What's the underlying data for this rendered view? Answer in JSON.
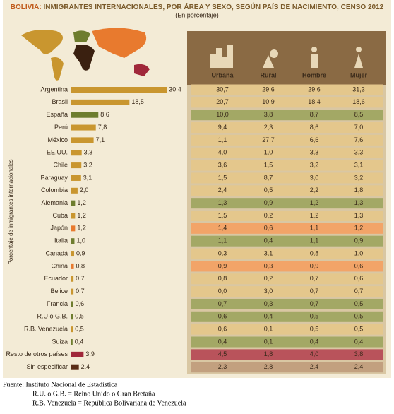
{
  "chart_data": {
    "type": "bar",
    "orientation": "horizontal",
    "title_prefix": "BOLIVIA:",
    "title": "INMIGRANTES INTERNACIONALES, POR ÁREA Y SEXO, SEGÚN PAÍS DE NACIMIENTO,  CENSO 2012",
    "subtitle": "(En porcentaje)",
    "y_axis_label": "Porcentaje de inmigrantes internacionales",
    "categories": [
      "Argentina",
      "Brasil",
      "España",
      "Perú",
      "México",
      "EE.UU.",
      "Chile",
      "Paraguay",
      "Colombia",
      "Alemania",
      "Cuba",
      "Japón",
      "Italia",
      "Canadá",
      "China",
      "Ecuador",
      "Belice",
      "Francia",
      "R.U o G.B.",
      "R.B. Venezuela",
      "Suiza",
      "Resto de otros países",
      "Sin especificar"
    ],
    "values": [
      30.4,
      18.5,
      8.6,
      7.8,
      7.1,
      3.3,
      3.2,
      3.1,
      2.0,
      1.2,
      1.2,
      1.2,
      1.0,
      0.9,
      0.8,
      0.7,
      0.7,
      0.6,
      0.5,
      0.5,
      0.4,
      3.9,
      2.4
    ],
    "value_labels": [
      "30,4",
      "18,5",
      "8,6",
      "7,8",
      "7,1",
      "3,3",
      "3,2",
      "3,1",
      "2,0",
      "1,2",
      "1,2",
      "1,2",
      "1,0",
      "0,9",
      "0,8",
      "0,7",
      "0,7",
      "0,6",
      "0,5",
      "0,5",
      "0,4",
      "3,9",
      "2,4"
    ],
    "colors": [
      "#c9962f",
      "#c9962f",
      "#6e7d2e",
      "#c9962f",
      "#c9962f",
      "#c9962f",
      "#c9962f",
      "#c9962f",
      "#c9962f",
      "#6e7d2e",
      "#c9962f",
      "#e87a2e",
      "#6e7d2e",
      "#c9962f",
      "#e87a2e",
      "#c9962f",
      "#c9962f",
      "#6e7d2e",
      "#6e7d2e",
      "#c9962f",
      "#6e7d2e",
      "#a0283a",
      "#5a2d17"
    ],
    "row_colors": [
      "#e4c78c",
      "#e4c78c",
      "#a3a865",
      "#e4c78c",
      "#e4c78c",
      "#e4c78c",
      "#e4c78c",
      "#e4c78c",
      "#e4c78c",
      "#a3a865",
      "#e4c78c",
      "#f2a468",
      "#a3a865",
      "#e4c78c",
      "#f2a468",
      "#e4c78c",
      "#e4c78c",
      "#a3a865",
      "#a3a865",
      "#e4c78c",
      "#a3a865",
      "#b9535b",
      "#c2a07f"
    ]
  },
  "table": {
    "columns": [
      "Urbana",
      "Rural",
      "Hombre",
      "Mujer"
    ],
    "rows": [
      [
        "30,7",
        "29,6",
        "29,6",
        "31,3"
      ],
      [
        "20,7",
        "10,9",
        "18,4",
        "18,6"
      ],
      [
        "10,0",
        "3,8",
        "8,7",
        "8,5"
      ],
      [
        "9,4",
        "2,3",
        "8,6",
        "7,0"
      ],
      [
        "1,1",
        "27,7",
        "6,6",
        "7,6"
      ],
      [
        "4,0",
        "1,0",
        "3,3",
        "3,3"
      ],
      [
        "3,6",
        "1,5",
        "3,2",
        "3,1"
      ],
      [
        "1,5",
        "8,7",
        "3,0",
        "3,2"
      ],
      [
        "2,4",
        "0,5",
        "2,2",
        "1,8"
      ],
      [
        "1,3",
        "0,9",
        "1,2",
        "1,3"
      ],
      [
        "1,5",
        "0,2",
        "1,2",
        "1,3"
      ],
      [
        "1,4",
        "0,6",
        "1,1",
        "1,2"
      ],
      [
        "1,1",
        "0,4",
        "1,1",
        "0,9"
      ],
      [
        "0,3",
        "3,1",
        "0,8",
        "1,0"
      ],
      [
        "0,9",
        "0,3",
        "0,9",
        "0,6"
      ],
      [
        "0,8",
        "0,2",
        "0,7",
        "0,6"
      ],
      [
        "0,0",
        "3,0",
        "0,7",
        "0,7"
      ],
      [
        "0,7",
        "0,3",
        "0,7",
        "0,5"
      ],
      [
        "0,6",
        "0,4",
        "0,5",
        "0,5"
      ],
      [
        "0,6",
        "0,1",
        "0,5",
        "0,5"
      ],
      [
        "0,4",
        "0,1",
        "0,4",
        "0,4"
      ],
      [
        "4,5",
        "1,8",
        "4,0",
        "3,8"
      ],
      [
        "2,3",
        "2,8",
        "2,4",
        "2,4"
      ]
    ]
  },
  "footer": [
    "Fuente: Instituto Nacional de Estadística",
    "R.U. o G.B. = Reino Unido o Gran Bretaña",
    "R.B. Venezuela = República Bolivariana de Venezuela"
  ]
}
